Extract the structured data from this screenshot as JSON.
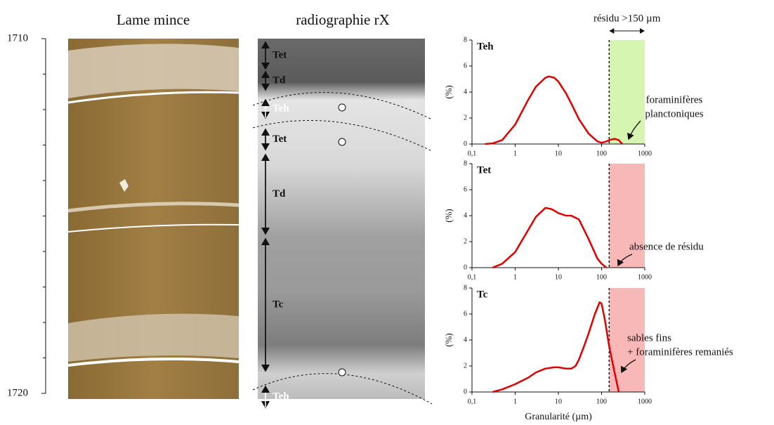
{
  "thin_section": {
    "title": "Lame mince"
  },
  "xray": {
    "title": "radiographie rX",
    "units": [
      "Tet",
      "Td",
      "Teh",
      "Tet",
      "Td",
      "Tc",
      "Teh"
    ]
  },
  "depth_axis": {
    "ylim": [
      1710,
      1720
    ],
    "yticks": [
      1710,
      1720
    ],
    "minor_ticks": [
      1711,
      1712,
      1713,
      1714,
      1715,
      1716,
      1717,
      1718,
      1719
    ]
  },
  "residue_label": "résidu >150 µm",
  "chart_data": [
    {
      "type": "line",
      "title": "Teh",
      "ylabel": "(%)",
      "color": "#e00000",
      "log_x": true,
      "xlim": [
        0.1,
        1000
      ],
      "xticks": [
        {
          "value": 0.1,
          "label": "0,1"
        },
        1,
        10,
        100,
        1000
      ],
      "ylim": [
        0,
        8
      ],
      "yticks": [
        0,
        2,
        4,
        6,
        8
      ],
      "threshold": 150,
      "residue_color": "#d6f5b0",
      "x": [
        0.2,
        0.3,
        0.5,
        1,
        2,
        3,
        5,
        6,
        8,
        10,
        15,
        20,
        30,
        50,
        80,
        100,
        130,
        150,
        200,
        250,
        300
      ],
      "values": [
        0,
        0.05,
        0.3,
        1.5,
        3.4,
        4.4,
        5.1,
        5.2,
        5.1,
        4.8,
        3.9,
        3.1,
        1.9,
        0.8,
        0.2,
        0.1,
        0.2,
        0.3,
        0.4,
        0.3,
        0
      ],
      "annotation": [
        "foraminifères",
        "planctoniques"
      ]
    },
    {
      "type": "line",
      "title": "Tet",
      "ylabel": "(%)",
      "color": "#e00000",
      "log_x": true,
      "xlim": [
        0.1,
        1000
      ],
      "xticks": [
        {
          "value": 0.1,
          "label": "0,1"
        },
        1,
        10,
        100,
        1000
      ],
      "ylim": [
        0,
        8
      ],
      "yticks": [
        0,
        2,
        4,
        6,
        8
      ],
      "threshold": 150,
      "residue_color": "#f8b8b8",
      "x": [
        0.3,
        0.5,
        1,
        2,
        3,
        5,
        7,
        10,
        15,
        20,
        30,
        50,
        80,
        100,
        130
      ],
      "values": [
        0,
        0.3,
        1.2,
        2.9,
        3.9,
        4.6,
        4.5,
        4.2,
        4.0,
        4.0,
        3.7,
        2.2,
        0.7,
        0.3,
        0
      ],
      "annotation": [
        "absence de résidu"
      ]
    },
    {
      "type": "line",
      "title": "Tc",
      "ylabel": "(%)",
      "xlabel": "Granularité (µm)",
      "color": "#e00000",
      "log_x": true,
      "xlim": [
        0.1,
        1000
      ],
      "xticks": [
        {
          "value": 0.1,
          "label": "0,1"
        },
        1,
        10,
        100,
        1000
      ],
      "ylim": [
        0,
        8
      ],
      "yticks": [
        0,
        2,
        4,
        6,
        8
      ],
      "threshold": 150,
      "residue_color": "#f8b8b8",
      "x": [
        0.3,
        0.5,
        1,
        2,
        3,
        5,
        8,
        10,
        15,
        20,
        25,
        30,
        40,
        50,
        70,
        90,
        100,
        120,
        150,
        200,
        250
      ],
      "values": [
        0,
        0.2,
        0.6,
        1.1,
        1.5,
        1.8,
        1.9,
        1.9,
        1.8,
        1.8,
        2.0,
        2.5,
        3.6,
        4.5,
        6.0,
        6.9,
        6.8,
        5.5,
        3.5,
        1.5,
        0
      ],
      "annotation": [
        "sables fins",
        "+ foraminifères remaniés"
      ]
    }
  ]
}
